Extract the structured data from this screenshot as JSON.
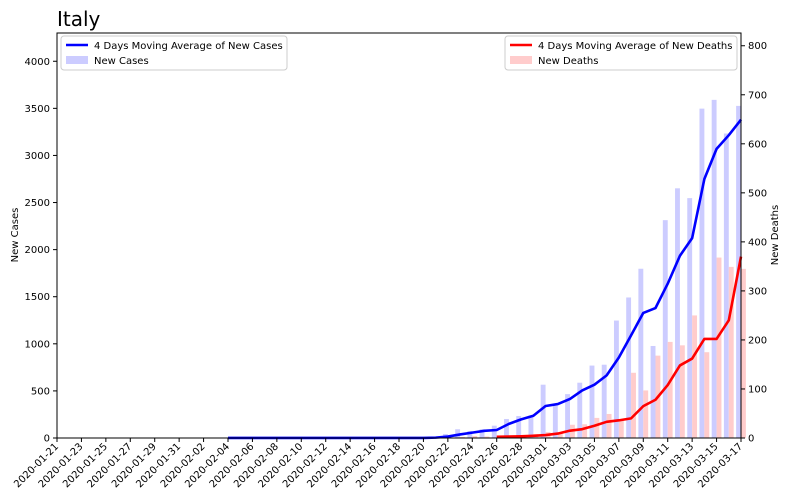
{
  "chart_data": {
    "type": "bar",
    "title": "Italy",
    "ylabel_left": "New Cases",
    "ylabel_right": "New Deaths",
    "ylim_left": [
      0,
      4300
    ],
    "ylim_right": [
      0,
      826
    ],
    "yticks_left": [
      0,
      500,
      1000,
      1500,
      2000,
      2500,
      3000,
      3500,
      4000
    ],
    "yticks_right": [
      0,
      100,
      200,
      300,
      400,
      500,
      600,
      700,
      800
    ],
    "x_tick_labels": [
      "2020-01-21",
      "2020-01-23",
      "2020-01-25",
      "2020-01-27",
      "2020-01-29",
      "2020-01-31",
      "2020-02-02",
      "2020-02-04",
      "2020-02-06",
      "2020-02-08",
      "2020-02-10",
      "2020-02-12",
      "2020-02-14",
      "2020-02-16",
      "2020-02-18",
      "2020-02-20",
      "2020-02-22",
      "2020-02-24",
      "2020-02-26",
      "2020-02-28",
      "2020-03-01",
      "2020-03-03",
      "2020-03-05",
      "2020-03-07",
      "2020-03-09",
      "2020-03-11",
      "2020-03-13",
      "2020-03-15",
      "2020-03-17"
    ],
    "legend_left": {
      "placement": "top-left",
      "entries": [
        "4 Days Moving Average of New Cases",
        "New Cases"
      ]
    },
    "legend_right": {
      "placement": "top-right",
      "entries": [
        "4 Days Moving Average of New Deaths",
        "New Deaths"
      ]
    },
    "colors": {
      "cases_line": "#0000ff",
      "cases_bar": "#ccccff",
      "deaths_line": "#ff0000",
      "deaths_bar": "#ffcccc"
    },
    "x": [
      "2020-01-31",
      "2020-02-01",
      "2020-02-02",
      "2020-02-03",
      "2020-02-04",
      "2020-02-05",
      "2020-02-06",
      "2020-02-07",
      "2020-02-08",
      "2020-02-09",
      "2020-02-10",
      "2020-02-11",
      "2020-02-12",
      "2020-02-13",
      "2020-02-14",
      "2020-02-15",
      "2020-02-16",
      "2020-02-17",
      "2020-02-18",
      "2020-02-19",
      "2020-02-20",
      "2020-02-21",
      "2020-02-22",
      "2020-02-23",
      "2020-02-24",
      "2020-02-25",
      "2020-02-26",
      "2020-02-27",
      "2020-02-28",
      "2020-02-29",
      "2020-03-01",
      "2020-03-02",
      "2020-03-03",
      "2020-03-04",
      "2020-03-05",
      "2020-03-06",
      "2020-03-07",
      "2020-03-08",
      "2020-03-09",
      "2020-03-10",
      "2020-03-11",
      "2020-03-12",
      "2020-03-13",
      "2020-03-14",
      "2020-03-15",
      "2020-03-16",
      "2020-03-17"
    ],
    "series": [
      {
        "name": "New Cases",
        "kind": "bar",
        "axis": "left",
        "values": [
          2,
          0,
          0,
          0,
          0,
          0,
          1,
          0,
          0,
          0,
          0,
          0,
          0,
          0,
          0,
          0,
          0,
          0,
          0,
          0,
          0,
          17,
          42,
          93,
          74,
          93,
          131,
          202,
          233,
          240,
          566,
          342,
          466,
          587,
          769,
          778,
          1247,
          1492,
          1797,
          977,
          2313,
          2651,
          2547,
          3497,
          3590,
          3233,
          3526
        ]
      },
      {
        "name": "4 Days Moving Average of New Cases",
        "kind": "line",
        "axis": "left",
        "values": [
          null,
          null,
          null,
          null,
          0.5,
          0.5,
          0.5,
          0.5,
          0.5,
          0.5,
          0.5,
          0.5,
          0.5,
          0.5,
          0.5,
          0.5,
          0.5,
          0.5,
          0.5,
          0.5,
          0.5,
          4,
          15,
          38,
          57,
          76,
          85,
          150,
          198,
          236,
          340,
          360,
          415,
          505,
          566,
          665,
          855,
          1090,
          1328,
          1380,
          1638,
          1935,
          2122,
          2750,
          3070,
          3215,
          3380
        ]
      },
      {
        "name": "New Deaths",
        "kind": "bar",
        "axis": "right",
        "values": [
          0,
          0,
          0,
          0,
          0,
          0,
          0,
          0,
          0,
          0,
          0,
          0,
          0,
          0,
          0,
          0,
          0,
          0,
          0,
          0,
          0,
          0,
          1,
          2,
          4,
          3,
          2,
          5,
          4,
          8,
          12,
          11,
          27,
          28,
          41,
          49,
          36,
          133,
          97,
          168,
          196,
          189,
          250,
          175,
          368,
          349,
          345
        ]
      },
      {
        "name": "4 Days Moving Average of New Deaths",
        "kind": "line",
        "axis": "right",
        "values": [
          null,
          null,
          null,
          null,
          null,
          null,
          null,
          null,
          null,
          null,
          null,
          null,
          null,
          null,
          null,
          null,
          null,
          null,
          null,
          null,
          null,
          null,
          null,
          null,
          null,
          null,
          2.5,
          3,
          3.5,
          4.5,
          6,
          9,
          15,
          18,
          25,
          33,
          36,
          40,
          65,
          78,
          108,
          148,
          162,
          202,
          202,
          240,
          370
        ]
      }
    ]
  }
}
